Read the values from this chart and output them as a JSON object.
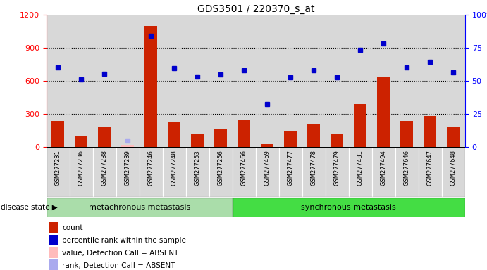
{
  "title": "GDS3501 / 220370_s_at",
  "samples": [
    "GSM277231",
    "GSM277236",
    "GSM277238",
    "GSM277239",
    "GSM277246",
    "GSM277248",
    "GSM277253",
    "GSM277256",
    "GSM277466",
    "GSM277469",
    "GSM277477",
    "GSM277478",
    "GSM277479",
    "GSM277481",
    "GSM277494",
    "GSM277646",
    "GSM277647",
    "GSM277648"
  ],
  "bar_values": [
    240,
    100,
    180,
    20,
    1100,
    230,
    120,
    170,
    245,
    30,
    145,
    205,
    120,
    390,
    640,
    240,
    280,
    185
  ],
  "absent_bar_idx": [
    3
  ],
  "absent_bar_color": "#ffbbbb",
  "bar_color": "#cc2200",
  "blue_values": [
    720,
    615,
    665,
    null,
    1010,
    715,
    640,
    660,
    700,
    390,
    635,
    700,
    635,
    885,
    940,
    720,
    775,
    680
  ],
  "absent_blue_idx": [
    3
  ],
  "absent_blue_value": 60,
  "absent_blue_color": "#aaaaee",
  "blue_color": "#0000cc",
  "ylim_left": [
    0,
    1200
  ],
  "yticks_left": [
    0,
    300,
    600,
    900,
    1200
  ],
  "yticks_right": [
    0,
    25,
    50,
    75,
    100
  ],
  "group1_label": "metachronous metastasis",
  "group2_label": "synchronous metastasis",
  "group1_count": 8,
  "group1_color": "#aaddaa",
  "group2_color": "#44dd44",
  "disease_state_label": "disease state",
  "legend_items": [
    {
      "color": "#cc2200",
      "label": "count"
    },
    {
      "color": "#0000cc",
      "label": "percentile rank within the sample"
    },
    {
      "color": "#ffbbbb",
      "label": "value, Detection Call = ABSENT"
    },
    {
      "color": "#aaaaee",
      "label": "rank, Detection Call = ABSENT"
    }
  ],
  "bg_color": "#d8d8d8",
  "title_fontsize": 10,
  "label_fontsize": 7,
  "tick_fontsize": 8
}
